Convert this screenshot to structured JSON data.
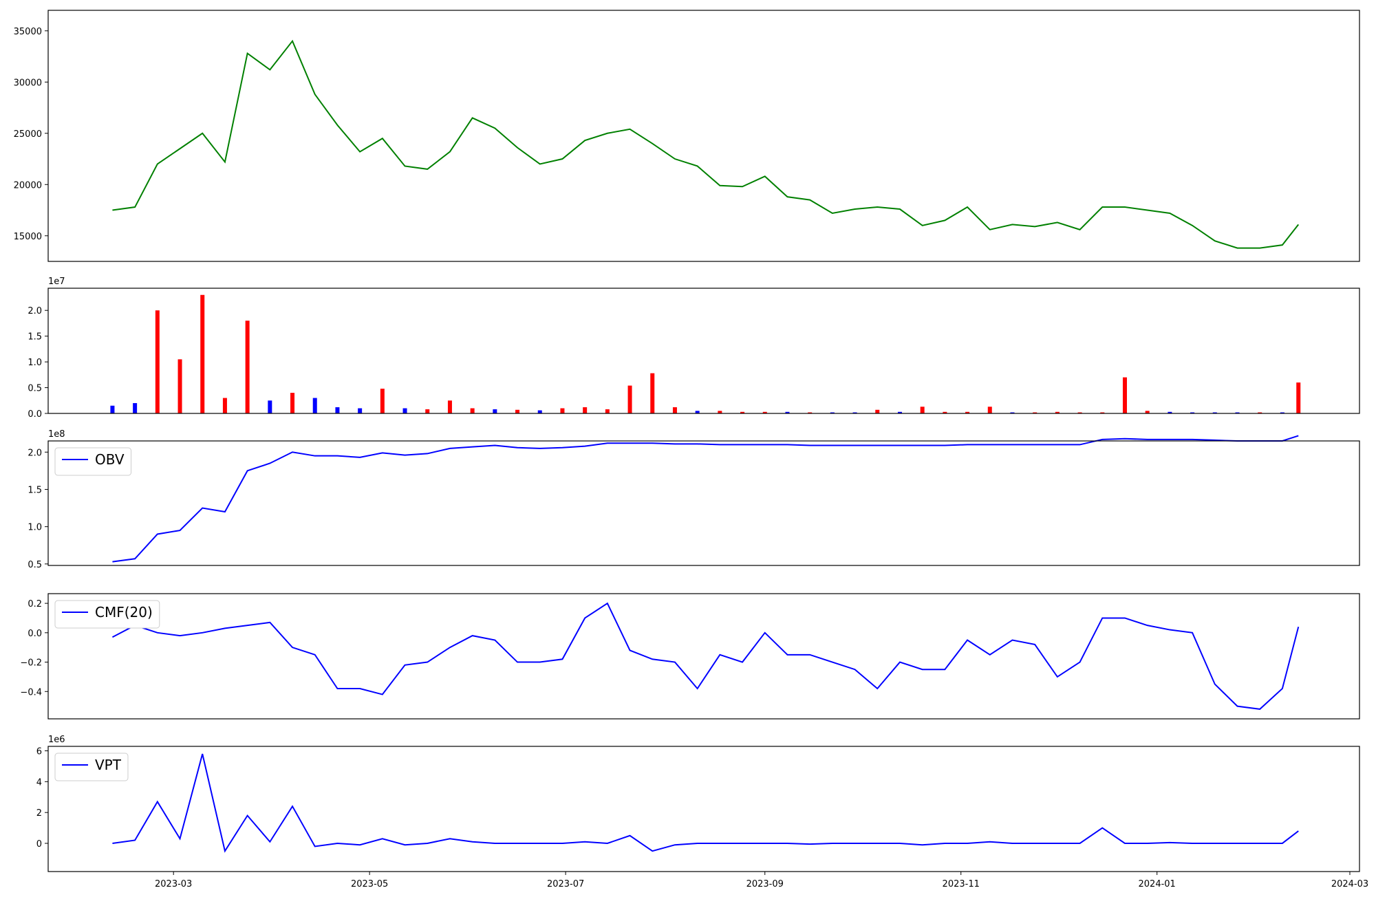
{
  "chart_data": [
    {
      "type": "line",
      "x": [
        "2023-02-10",
        "2023-02-17",
        "2023-02-24",
        "2023-03-03",
        "2023-03-10",
        "2023-03-17",
        "2023-03-24",
        "2023-03-31",
        "2023-04-07",
        "2023-04-14",
        "2023-04-21",
        "2023-04-28",
        "2023-05-05",
        "2023-05-12",
        "2023-05-19",
        "2023-05-26",
        "2023-06-02",
        "2023-06-09",
        "2023-06-16",
        "2023-06-23",
        "2023-06-30",
        "2023-07-07",
        "2023-07-14",
        "2023-07-21",
        "2023-07-28",
        "2023-08-04",
        "2023-08-11",
        "2023-08-18",
        "2023-08-25",
        "2023-09-01",
        "2023-09-08",
        "2023-09-15",
        "2023-09-22",
        "2023-09-29",
        "2023-10-06",
        "2023-10-13",
        "2023-10-20",
        "2023-10-27",
        "2023-11-03",
        "2023-11-10",
        "2023-11-17",
        "2023-11-24",
        "2023-12-01",
        "2023-12-08",
        "2023-12-15",
        "2023-12-22",
        "2023-12-29",
        "2024-01-05",
        "2024-01-12",
        "2024-01-19",
        "2024-01-26",
        "2024-02-02",
        "2024-02-09",
        "2024-02-14"
      ],
      "xlim": [
        "2023-01-21",
        "2024-03-04"
      ],
      "ylim": [
        12500,
        37000
      ],
      "yticks": [
        15000,
        20000,
        25000,
        30000,
        35000
      ],
      "series": [
        {
          "color": "green",
          "values": [
            17500,
            17800,
            22000,
            23500,
            25000,
            22200,
            32800,
            31200,
            34000,
            28800,
            25800,
            23200,
            24500,
            21800,
            21500,
            23200,
            26500,
            25500,
            23600,
            22000,
            22500,
            24300,
            25000,
            25400,
            24000,
            22500,
            21800,
            19900,
            19800,
            20800,
            18800,
            18500,
            17200,
            17600,
            17800,
            17600,
            16000,
            16500,
            17800,
            15600,
            16100,
            15900,
            16300,
            15600,
            17800,
            17800,
            17500,
            17200,
            16000,
            14500,
            13800,
            13800,
            14100,
            16100
          ]
        }
      ]
    },
    {
      "type": "bar",
      "x": [
        "2023-02-10",
        "2023-02-17",
        "2023-02-24",
        "2023-03-03",
        "2023-03-10",
        "2023-03-17",
        "2023-03-24",
        "2023-03-31",
        "2023-04-07",
        "2023-04-14",
        "2023-04-21",
        "2023-04-28",
        "2023-05-05",
        "2023-05-12",
        "2023-05-19",
        "2023-05-26",
        "2023-06-02",
        "2023-06-09",
        "2023-06-16",
        "2023-06-23",
        "2023-06-30",
        "2023-07-07",
        "2023-07-14",
        "2023-07-21",
        "2023-07-28",
        "2023-08-04",
        "2023-08-11",
        "2023-08-18",
        "2023-08-25",
        "2023-09-01",
        "2023-09-08",
        "2023-09-15",
        "2023-09-22",
        "2023-09-29",
        "2023-10-06",
        "2023-10-13",
        "2023-10-20",
        "2023-10-27",
        "2023-11-03",
        "2023-11-10",
        "2023-11-17",
        "2023-11-24",
        "2023-12-01",
        "2023-12-08",
        "2023-12-15",
        "2023-12-22",
        "2023-12-29",
        "2024-01-05",
        "2024-01-12",
        "2024-01-19",
        "2024-01-26",
        "2024-02-02",
        "2024-02-09",
        "2024-02-14"
      ],
      "xlim": [
        "2023-01-21",
        "2024-03-04"
      ],
      "ylim": [
        0,
        24300000
      ],
      "yticks": [
        {
          "value": 0,
          "label": "0.0"
        },
        {
          "value": 5000000,
          "label": "0.5"
        },
        {
          "value": 10000000,
          "label": "1.0"
        },
        {
          "value": 15000000,
          "label": "1.5"
        },
        {
          "value": 20000000,
          "label": "2.0"
        }
      ],
      "offset_text": "1e7",
      "series": [
        {
          "colors": [
            "blue",
            "blue",
            "red",
            "red",
            "red",
            "red",
            "red",
            "blue",
            "red",
            "blue",
            "blue",
            "blue",
            "red",
            "blue",
            "red",
            "red",
            "red",
            "blue",
            "red",
            "blue",
            "red",
            "red",
            "red",
            "red",
            "red",
            "red",
            "blue",
            "red",
            "red",
            "red",
            "blue",
            "red",
            "blue",
            "blue",
            "red",
            "blue",
            "red",
            "red",
            "red",
            "red",
            "blue",
            "red",
            "red",
            "red",
            "red",
            "red",
            "red",
            "blue",
            "blue",
            "blue",
            "blue",
            "red",
            "blue",
            "red"
          ],
          "values": [
            1500000,
            2000000,
            20000000,
            10500000,
            23000000,
            3000000,
            18000000,
            2500000,
            4000000,
            3000000,
            1200000,
            1000000,
            4800000,
            1000000,
            800000,
            2500000,
            1000000,
            800000,
            700000,
            600000,
            1000000,
            1200000,
            800000,
            5400000,
            7800000,
            1200000,
            500000,
            500000,
            300000,
            300000,
            300000,
            200000,
            200000,
            200000,
            700000,
            300000,
            1300000,
            300000,
            300000,
            1300000,
            200000,
            200000,
            300000,
            200000,
            200000,
            7000000,
            500000,
            300000,
            200000,
            200000,
            200000,
            200000,
            200000,
            6000000
          ]
        }
      ]
    },
    {
      "type": "line",
      "x": [
        "2023-02-10",
        "2023-02-17",
        "2023-02-24",
        "2023-03-03",
        "2023-03-10",
        "2023-03-17",
        "2023-03-24",
        "2023-03-31",
        "2023-04-07",
        "2023-04-14",
        "2023-04-21",
        "2023-04-28",
        "2023-05-05",
        "2023-05-12",
        "2023-05-19",
        "2023-05-26",
        "2023-06-02",
        "2023-06-09",
        "2023-06-16",
        "2023-06-23",
        "2023-06-30",
        "2023-07-07",
        "2023-07-14",
        "2023-07-21",
        "2023-07-28",
        "2023-08-04",
        "2023-08-11",
        "2023-08-18",
        "2023-08-25",
        "2023-09-01",
        "2023-09-08",
        "2023-09-15",
        "2023-09-22",
        "2023-09-29",
        "2023-10-06",
        "2023-10-13",
        "2023-10-20",
        "2023-10-27",
        "2023-11-03",
        "2023-11-10",
        "2023-11-17",
        "2023-11-24",
        "2023-12-01",
        "2023-12-08",
        "2023-12-15",
        "2023-12-22",
        "2023-12-29",
        "2024-01-05",
        "2024-01-12",
        "2024-01-19",
        "2024-01-26",
        "2024-02-02",
        "2024-02-09",
        "2024-02-14"
      ],
      "xlim": [
        "2023-01-21",
        "2024-03-04"
      ],
      "ylim": [
        48000000,
        215000000
      ],
      "yticks": [
        {
          "value": 50000000,
          "label": "0.5"
        },
        {
          "value": 100000000,
          "label": "1.0"
        },
        {
          "value": 150000000,
          "label": "1.5"
        },
        {
          "value": 200000000,
          "label": "2.0"
        }
      ],
      "offset_text": "1e8",
      "legend": "upper left",
      "series": [
        {
          "name": "OBV",
          "color": "blue",
          "values": [
            53000000,
            57000000,
            90000000,
            95000000,
            125000000,
            120000000,
            175000000,
            185000000,
            200000000,
            195000000,
            195000000,
            193000000,
            199000000,
            196000000,
            198000000,
            205000000,
            207000000,
            209000000,
            206000000,
            205000000,
            206000000,
            208000000,
            212000000,
            212000000,
            212000000,
            211000000,
            211000000,
            210000000,
            210000000,
            210000000,
            210000000,
            209000000,
            209000000,
            209000000,
            209000000,
            209000000,
            209000000,
            209000000,
            210000000,
            210000000,
            210000000,
            210000000,
            210000000,
            210000000,
            217000000,
            218000000,
            217000000,
            217000000,
            217000000,
            216000000,
            215000000,
            215000000,
            215000000,
            222000000
          ]
        }
      ]
    },
    {
      "type": "line",
      "x": [
        "2023-02-10",
        "2023-02-17",
        "2023-02-24",
        "2023-03-03",
        "2023-03-10",
        "2023-03-17",
        "2023-03-24",
        "2023-03-31",
        "2023-04-07",
        "2023-04-14",
        "2023-04-21",
        "2023-04-28",
        "2023-05-05",
        "2023-05-12",
        "2023-05-19",
        "2023-05-26",
        "2023-06-02",
        "2023-06-09",
        "2023-06-16",
        "2023-06-23",
        "2023-06-30",
        "2023-07-07",
        "2023-07-14",
        "2023-07-21",
        "2023-07-28",
        "2023-08-04",
        "2023-08-11",
        "2023-08-18",
        "2023-08-25",
        "2023-09-01",
        "2023-09-08",
        "2023-09-15",
        "2023-09-22",
        "2023-09-29",
        "2023-10-06",
        "2023-10-13",
        "2023-10-20",
        "2023-10-27",
        "2023-11-03",
        "2023-11-10",
        "2023-11-17",
        "2023-11-24",
        "2023-12-01",
        "2023-12-08",
        "2023-12-15",
        "2023-12-22",
        "2023-12-29",
        "2024-01-05",
        "2024-01-12",
        "2024-01-19",
        "2024-01-26",
        "2024-02-02",
        "2024-02-09",
        "2024-02-14"
      ],
      "xlim": [
        "2023-01-21",
        "2024-03-04"
      ],
      "ylim": [
        -0.586,
        0.266
      ],
      "yticks": [
        {
          "value": -0.4,
          "label": "−0.4"
        },
        {
          "value": -0.2,
          "label": "−0.2"
        },
        {
          "value": 0,
          "label": "0.0"
        },
        {
          "value": 0.2,
          "label": "0.2"
        }
      ],
      "legend": "upper left",
      "series": [
        {
          "name": "CMF(20)",
          "color": "blue",
          "values": [
            -0.03,
            0.05,
            0.0,
            -0.02,
            0.0,
            0.03,
            0.05,
            0.07,
            -0.1,
            -0.15,
            -0.38,
            -0.38,
            -0.42,
            -0.22,
            -0.2,
            -0.1,
            -0.02,
            -0.05,
            -0.2,
            -0.2,
            -0.18,
            0.1,
            0.2,
            -0.12,
            -0.18,
            -0.2,
            -0.38,
            -0.15,
            -0.2,
            0.0,
            -0.15,
            -0.15,
            -0.2,
            -0.25,
            -0.38,
            -0.2,
            -0.25,
            -0.25,
            -0.05,
            -0.15,
            -0.05,
            -0.08,
            -0.3,
            -0.2,
            0.1,
            0.1,
            0.05,
            0.02,
            0.0,
            -0.35,
            -0.5,
            -0.52,
            -0.38,
            0.04
          ]
        }
      ]
    },
    {
      "type": "line",
      "x": [
        "2023-02-10",
        "2023-02-17",
        "2023-02-24",
        "2023-03-03",
        "2023-03-10",
        "2023-03-17",
        "2023-03-24",
        "2023-03-31",
        "2023-04-07",
        "2023-04-14",
        "2023-04-21",
        "2023-04-28",
        "2023-05-05",
        "2023-05-12",
        "2023-05-19",
        "2023-05-26",
        "2023-06-02",
        "2023-06-09",
        "2023-06-16",
        "2023-06-23",
        "2023-06-30",
        "2023-07-07",
        "2023-07-14",
        "2023-07-21",
        "2023-07-28",
        "2023-08-04",
        "2023-08-11",
        "2023-08-18",
        "2023-08-25",
        "2023-09-01",
        "2023-09-08",
        "2023-09-15",
        "2023-09-22",
        "2023-09-29",
        "2023-10-06",
        "2023-10-13",
        "2023-10-20",
        "2023-10-27",
        "2023-11-03",
        "2023-11-10",
        "2023-11-17",
        "2023-11-24",
        "2023-12-01",
        "2023-12-08",
        "2023-12-15",
        "2023-12-22",
        "2023-12-29",
        "2024-01-05",
        "2024-01-12",
        "2024-01-19",
        "2024-01-26",
        "2024-02-02",
        "2024-02-09",
        "2024-02-14"
      ],
      "xlim": [
        "2023-01-21",
        "2024-03-04"
      ],
      "xticks": [
        "2023-03",
        "2023-05",
        "2023-07",
        "2023-09",
        "2023-11",
        "2024-01",
        "2024-03"
      ],
      "ylim": [
        -1830000,
        6290000
      ],
      "yticks": [
        {
          "value": 0,
          "label": "0"
        },
        {
          "value": 2000000,
          "label": "2"
        },
        {
          "value": 4000000,
          "label": "4"
        },
        {
          "value": 6000000,
          "label": "6"
        }
      ],
      "offset_text": "1e6",
      "legend": "upper left",
      "series": [
        {
          "name": "VPT",
          "color": "blue",
          "values": [
            0,
            200000,
            2700000,
            300000,
            5800000,
            -500000,
            1800000,
            100000,
            2400000,
            -200000,
            0,
            -100000,
            300000,
            -100000,
            0,
            300000,
            100000,
            0,
            0,
            0,
            0,
            100000,
            0,
            500000,
            -500000,
            -100000,
            0,
            0,
            0,
            0,
            0,
            -50000,
            0,
            0,
            0,
            0,
            -100000,
            0,
            0,
            100000,
            0,
            0,
            0,
            0,
            1000000,
            0,
            0,
            50000,
            0,
            0,
            0,
            0,
            0,
            800000
          ]
        }
      ]
    }
  ]
}
